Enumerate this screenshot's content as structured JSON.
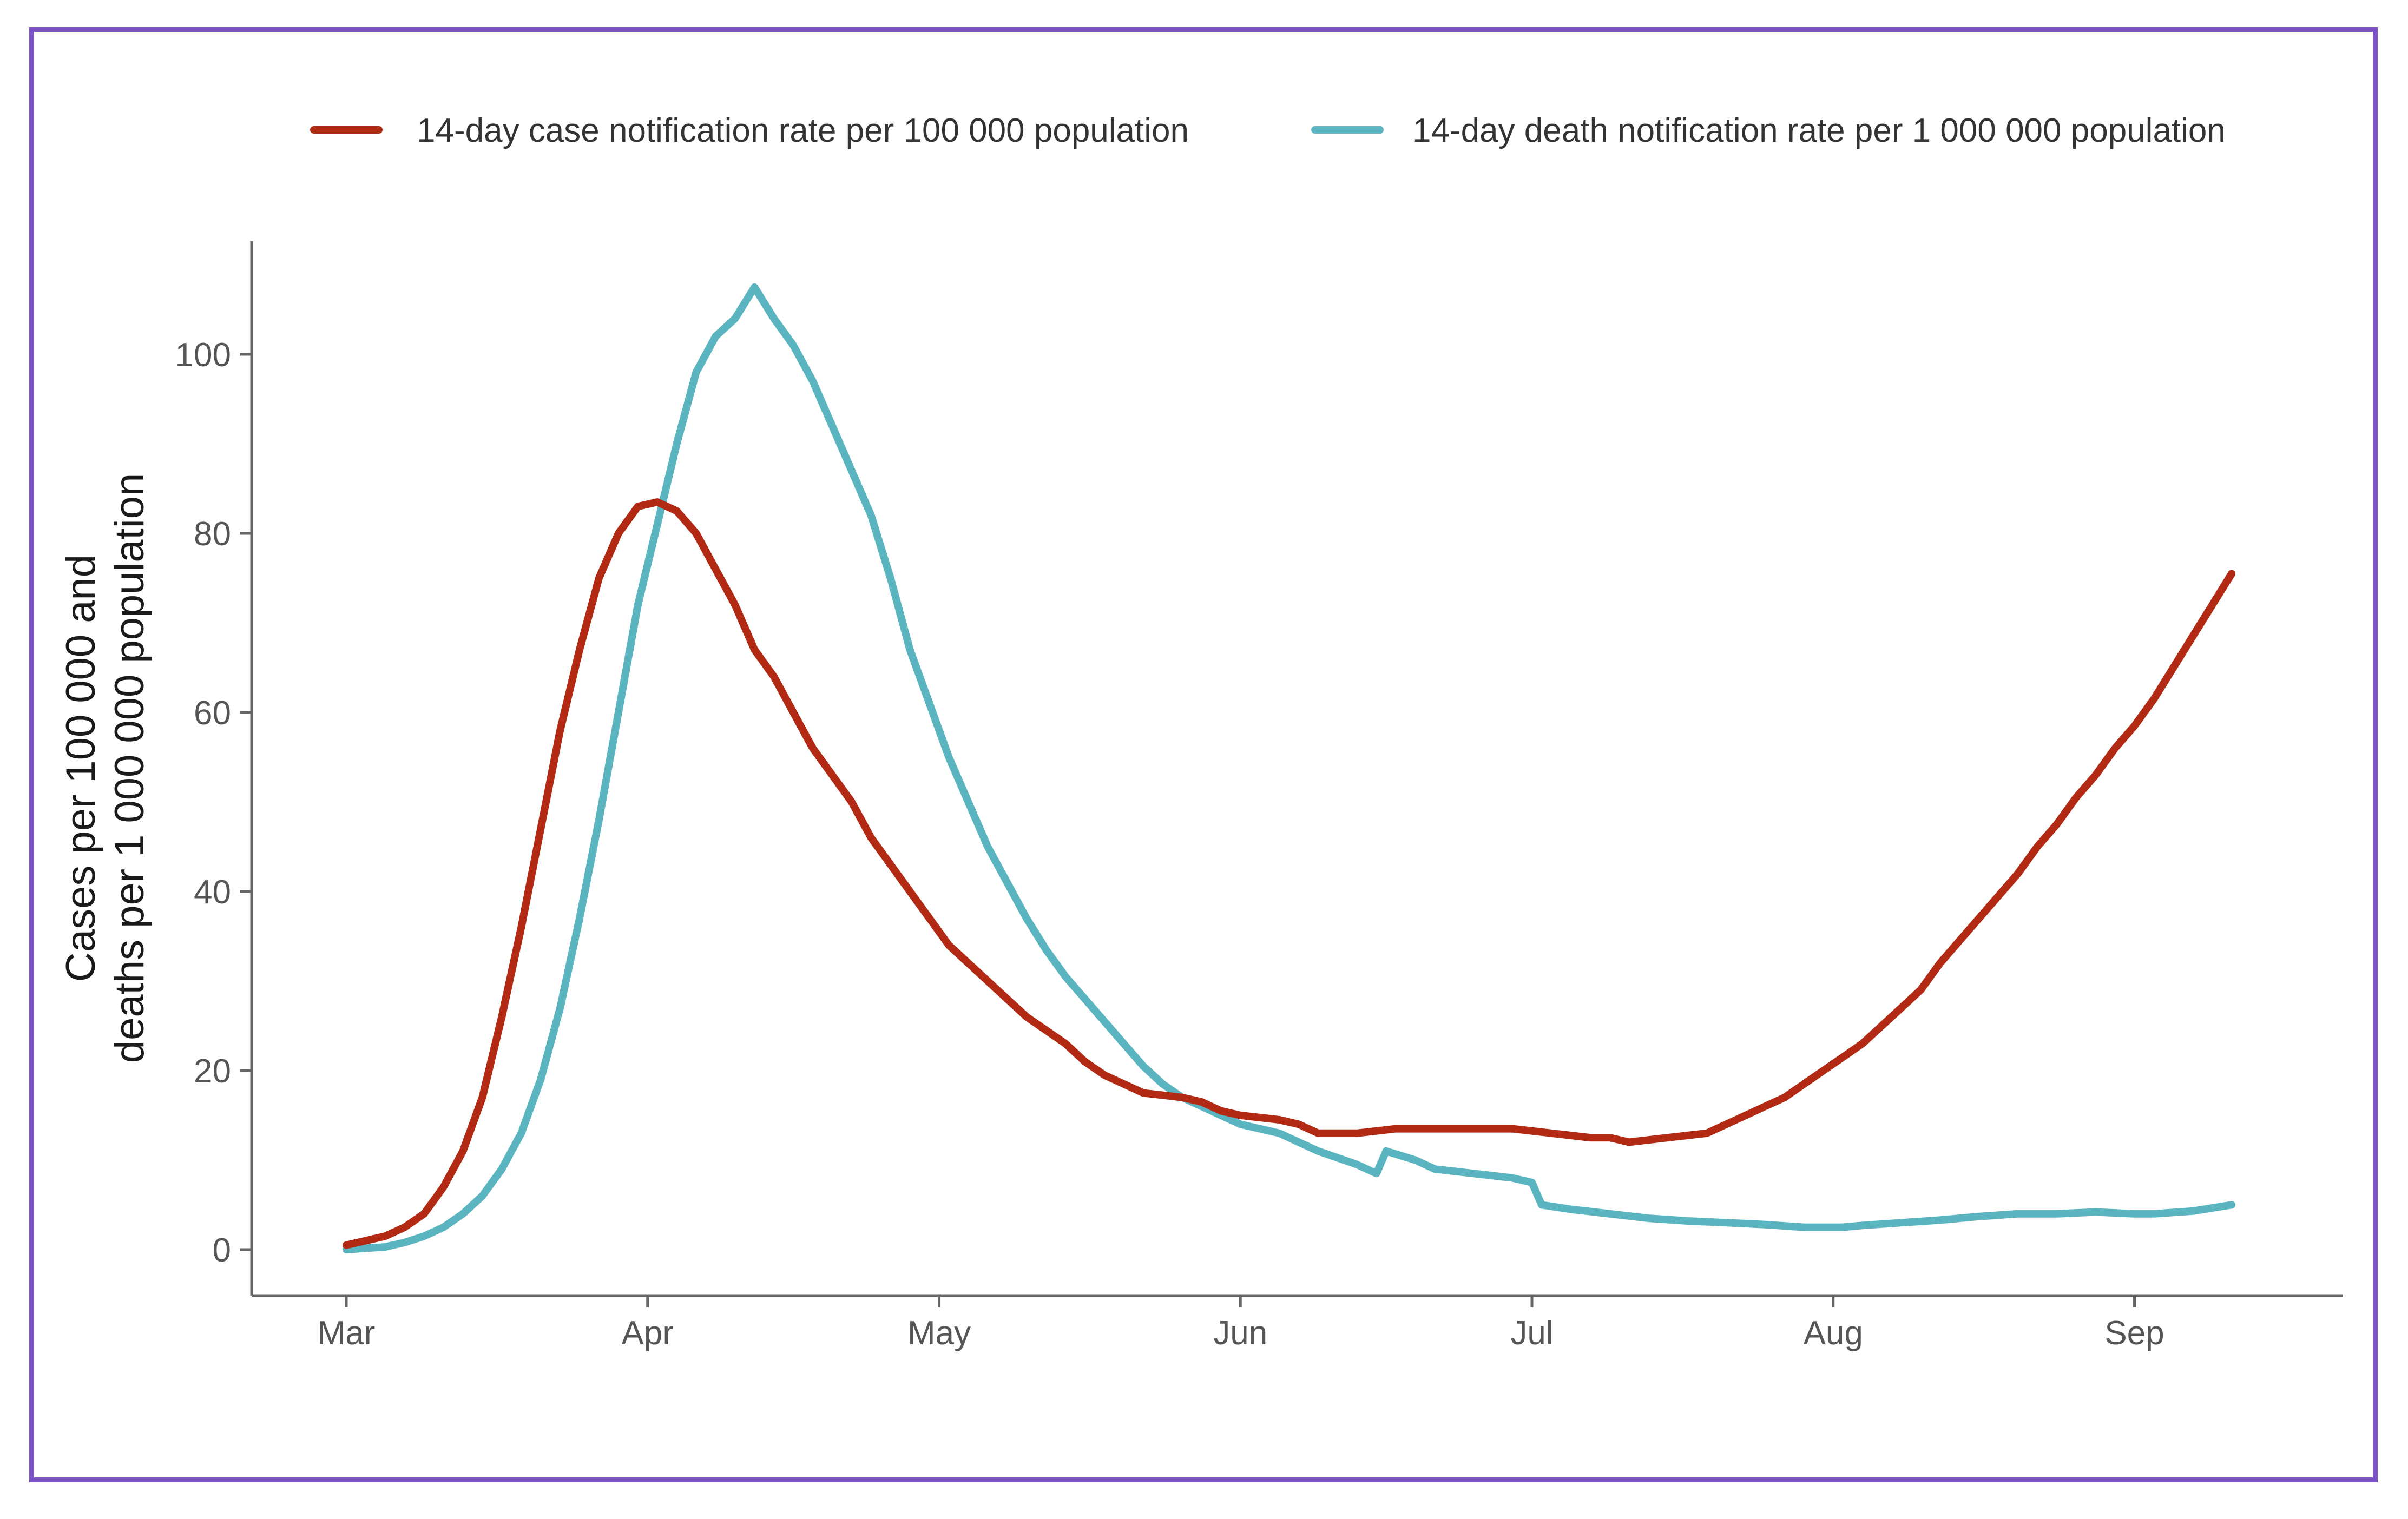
{
  "chart_data": {
    "type": "line",
    "title": "",
    "xlabel": "",
    "ylabel_lines": [
      "Cases per 100 000 and",
      "deaths per 1 000 000 population"
    ],
    "ylim": [
      0,
      110
    ],
    "xlim": [
      0,
      196
    ],
    "y_ticks": [
      0,
      20,
      40,
      60,
      80,
      100
    ],
    "x_ticks": [
      {
        "day": 0,
        "label": "Mar"
      },
      {
        "day": 31,
        "label": "Apr"
      },
      {
        "day": 61,
        "label": "May"
      },
      {
        "day": 92,
        "label": "Jun"
      },
      {
        "day": 122,
        "label": "Jul"
      },
      {
        "day": 153,
        "label": "Aug"
      },
      {
        "day": 184,
        "label": "Sep"
      }
    ],
    "grid": false,
    "legend_position": "top",
    "series": [
      {
        "name": "14-day case notification rate per 100 000 population",
        "color": "#b22a14",
        "points": [
          [
            0,
            0.5
          ],
          [
            4,
            1.5
          ],
          [
            6,
            2.5
          ],
          [
            8,
            4
          ],
          [
            10,
            7
          ],
          [
            12,
            11
          ],
          [
            14,
            17
          ],
          [
            16,
            26
          ],
          [
            18,
            36
          ],
          [
            20,
            47
          ],
          [
            22,
            58
          ],
          [
            24,
            67
          ],
          [
            26,
            75
          ],
          [
            28,
            80
          ],
          [
            30,
            83
          ],
          [
            32,
            83.5
          ],
          [
            34,
            82.5
          ],
          [
            36,
            80
          ],
          [
            38,
            76
          ],
          [
            40,
            72
          ],
          [
            42,
            67
          ],
          [
            44,
            64
          ],
          [
            46,
            60
          ],
          [
            48,
            56
          ],
          [
            50,
            53
          ],
          [
            52,
            50
          ],
          [
            54,
            46
          ],
          [
            56,
            43
          ],
          [
            58,
            40
          ],
          [
            60,
            37
          ],
          [
            62,
            34
          ],
          [
            64,
            32
          ],
          [
            66,
            30
          ],
          [
            68,
            28
          ],
          [
            70,
            26
          ],
          [
            72,
            24.5
          ],
          [
            74,
            23
          ],
          [
            76,
            21
          ],
          [
            78,
            19.5
          ],
          [
            80,
            18.5
          ],
          [
            82,
            17.5
          ],
          [
            86,
            17
          ],
          [
            88,
            16.5
          ],
          [
            90,
            15.5
          ],
          [
            92,
            15
          ],
          [
            96,
            14.5
          ],
          [
            98,
            14
          ],
          [
            100,
            13
          ],
          [
            104,
            13
          ],
          [
            108,
            13.5
          ],
          [
            112,
            13.5
          ],
          [
            116,
            13.5
          ],
          [
            120,
            13.5
          ],
          [
            124,
            13
          ],
          [
            128,
            12.5
          ],
          [
            130,
            12.5
          ],
          [
            132,
            12
          ],
          [
            136,
            12.5
          ],
          [
            140,
            13
          ],
          [
            142,
            14
          ],
          [
            144,
            15
          ],
          [
            146,
            16
          ],
          [
            148,
            17
          ],
          [
            150,
            18.5
          ],
          [
            152,
            20
          ],
          [
            154,
            21.5
          ],
          [
            156,
            23
          ],
          [
            158,
            25
          ],
          [
            160,
            27
          ],
          [
            162,
            29
          ],
          [
            164,
            32
          ],
          [
            166,
            34.5
          ],
          [
            168,
            37
          ],
          [
            170,
            39.5
          ],
          [
            172,
            42
          ],
          [
            174,
            45
          ],
          [
            176,
            47.5
          ],
          [
            178,
            50.5
          ],
          [
            180,
            53
          ],
          [
            182,
            56
          ],
          [
            184,
            58.5
          ],
          [
            186,
            61.5
          ],
          [
            188,
            65
          ],
          [
            190,
            68.5
          ],
          [
            192,
            72
          ],
          [
            194,
            75.5
          ]
        ]
      },
      {
        "name": "14-day death notification rate per 1 000 000 population",
        "color": "#5bb5c0",
        "points": [
          [
            0,
            0
          ],
          [
            4,
            0.3
          ],
          [
            6,
            0.8
          ],
          [
            8,
            1.5
          ],
          [
            10,
            2.5
          ],
          [
            12,
            4
          ],
          [
            14,
            6
          ],
          [
            16,
            9
          ],
          [
            18,
            13
          ],
          [
            20,
            19
          ],
          [
            22,
            27
          ],
          [
            24,
            37
          ],
          [
            26,
            48
          ],
          [
            28,
            60
          ],
          [
            30,
            72
          ],
          [
            32,
            81
          ],
          [
            34,
            90
          ],
          [
            36,
            98
          ],
          [
            38,
            102
          ],
          [
            40,
            104
          ],
          [
            42,
            107.5
          ],
          [
            44,
            104
          ],
          [
            46,
            101
          ],
          [
            48,
            97
          ],
          [
            50,
            92
          ],
          [
            52,
            87
          ],
          [
            54,
            82
          ],
          [
            56,
            75
          ],
          [
            58,
            67
          ],
          [
            60,
            61
          ],
          [
            62,
            55
          ],
          [
            64,
            50
          ],
          [
            66,
            45
          ],
          [
            68,
            41
          ],
          [
            70,
            37
          ],
          [
            72,
            33.5
          ],
          [
            74,
            30.5
          ],
          [
            76,
            28
          ],
          [
            78,
            25.5
          ],
          [
            80,
            23
          ],
          [
            82,
            20.5
          ],
          [
            84,
            18.5
          ],
          [
            86,
            17
          ],
          [
            88,
            16
          ],
          [
            90,
            15
          ],
          [
            92,
            14
          ],
          [
            96,
            13
          ],
          [
            98,
            12
          ],
          [
            100,
            11
          ],
          [
            104,
            9.5
          ],
          [
            106,
            8.5
          ],
          [
            107,
            11
          ],
          [
            110,
            10
          ],
          [
            112,
            9
          ],
          [
            116,
            8.5
          ],
          [
            120,
            8
          ],
          [
            122,
            7.5
          ],
          [
            123,
            5
          ],
          [
            126,
            4.5
          ],
          [
            130,
            4
          ],
          [
            134,
            3.5
          ],
          [
            138,
            3.2
          ],
          [
            142,
            3
          ],
          [
            146,
            2.8
          ],
          [
            150,
            2.5
          ],
          [
            154,
            2.5
          ],
          [
            156,
            2.7
          ],
          [
            160,
            3
          ],
          [
            164,
            3.3
          ],
          [
            168,
            3.7
          ],
          [
            172,
            4
          ],
          [
            176,
            4
          ],
          [
            180,
            4.2
          ],
          [
            184,
            4
          ],
          [
            186,
            4
          ],
          [
            190,
            4.3
          ],
          [
            194,
            5
          ]
        ]
      }
    ]
  }
}
